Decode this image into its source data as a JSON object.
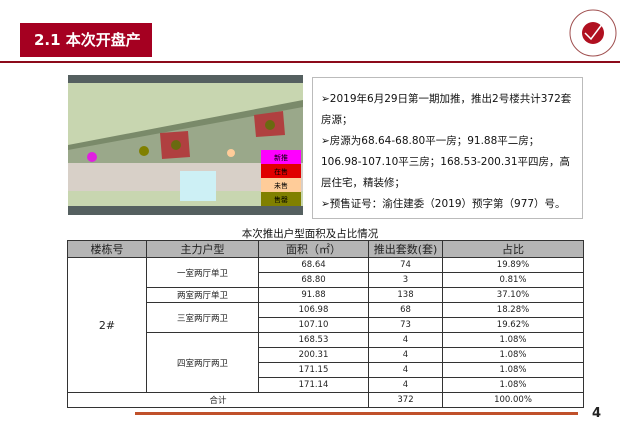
{
  "header": {
    "title": "2.1 本次开盘产品"
  },
  "map_legend": [
    {
      "label": "新推",
      "color": "#ff00ff"
    },
    {
      "label": "在售",
      "color": "#e00000"
    },
    {
      "label": "未售",
      "color": "#ffcc99"
    },
    {
      "label": "售罄",
      "color": "#808000"
    }
  ],
  "info": [
    "➢2019年6月29日第一期加推，推出2号楼共计372套房源；",
    "➢房源为68.64-68.80平一房；91.88平二房；106.98-107.10平三房；168.53-200.31平四房，高层住宅，精装修；",
    "➢预售证号：渝住建委（2019）预字第（977）号。"
  ],
  "table": {
    "caption": "本次推出户型面积及占比情况",
    "headers": [
      "楼栋号",
      "主力户型",
      "面积（㎡）",
      "推出套数(套)",
      "占比"
    ],
    "building": "2#",
    "groups": [
      {
        "type": "一室两厅单卫",
        "rows": [
          [
            "68.64",
            "74",
            "19.89%"
          ],
          [
            "68.80",
            "3",
            "0.81%"
          ]
        ]
      },
      {
        "type": "两室两厅单卫",
        "rows": [
          [
            "91.88",
            "138",
            "37.10%"
          ]
        ]
      },
      {
        "type": "三室两厅两卫",
        "rows": [
          [
            "106.98",
            "68",
            "18.28%"
          ],
          [
            "107.10",
            "73",
            "19.62%"
          ]
        ]
      },
      {
        "type": "四室两厅两卫",
        "rows": [
          [
            "168.53",
            "4",
            "1.08%"
          ],
          [
            "200.31",
            "4",
            "1.08%"
          ],
          [
            "171.15",
            "4",
            "1.08%"
          ],
          [
            "171.14",
            "4",
            "1.08%"
          ]
        ]
      }
    ],
    "total": {
      "label": "合计",
      "count": "372",
      "ratio": "100.00%"
    }
  },
  "page_number": "4"
}
